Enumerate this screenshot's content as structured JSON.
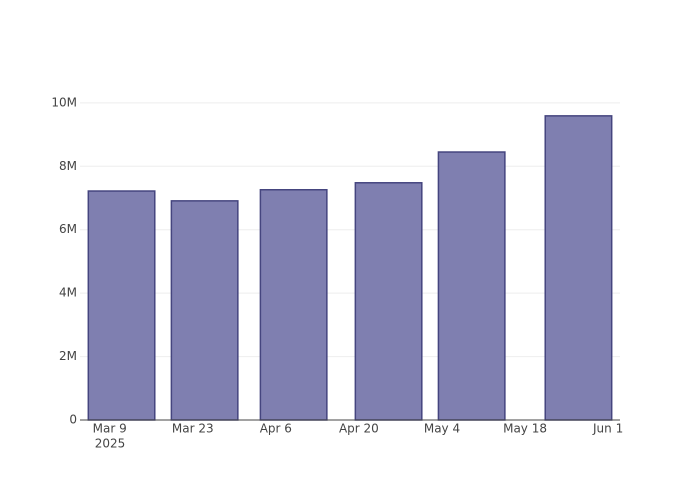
{
  "chart_data": {
    "type": "bar",
    "x": [
      "2025-03-11",
      "2025-03-25",
      "2025-04-09",
      "2025-04-25",
      "2025-05-09",
      "2025-05-27"
    ],
    "values": [
      7220000,
      6910000,
      7260000,
      7480000,
      8450000,
      9590000
    ],
    "color": "#7f7fb0",
    "edge_color": "#45457f",
    "xlim": [
      "2025-03-04",
      "2025-06-03"
    ],
    "xticks": [
      {
        "value": "2025-03-09",
        "label": "Mar 9"
      },
      {
        "value": "2025-03-23",
        "label": "Mar 23"
      },
      {
        "value": "2025-04-06",
        "label": "Apr 6"
      },
      {
        "value": "2025-04-20",
        "label": "Apr 20"
      },
      {
        "value": "2025-05-04",
        "label": "May 4"
      },
      {
        "value": "2025-05-18",
        "label": "May 18"
      },
      {
        "value": "2025-06-01",
        "label": "Jun 1"
      }
    ],
    "xtick_year": "2025",
    "ylim": [
      0,
      10090000
    ],
    "yticks": [
      0,
      {
        "value": 2000000,
        "label": "2M"
      },
      {
        "value": 4000000,
        "label": "4M"
      },
      {
        "value": 6000000,
        "label": "6M"
      },
      {
        "value": 8000000,
        "label": "8M"
      },
      {
        "value": 10000000,
        "label": "10M"
      }
    ],
    "grid": true
  }
}
